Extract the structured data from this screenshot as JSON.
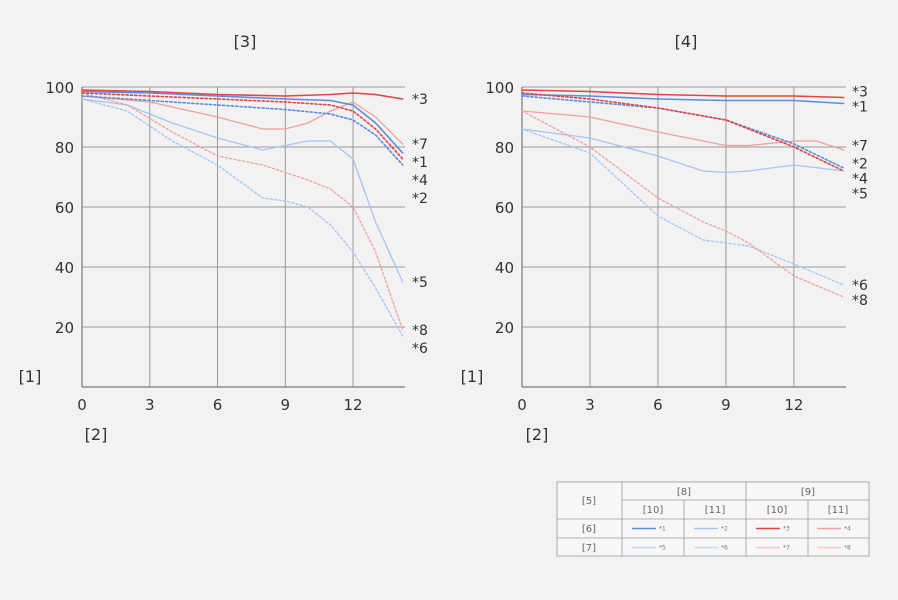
{
  "charts": {
    "left": {
      "title": "[3]",
      "ylabel": "[1]",
      "xlabel": "[2]"
    },
    "right": {
      "title": "[4]",
      "ylabel": "[1]",
      "xlabel": "[2]"
    }
  },
  "legend": {
    "corner": "[5]",
    "group_a": "[8]",
    "group_b": "[9]",
    "sub_a1": "[10]",
    "sub_a2": "[11]",
    "sub_b1": "[10]",
    "sub_b2": "[11]",
    "row1": "[6]",
    "row2": "[7]",
    "entries": [
      "*1",
      "*2",
      "*3",
      "*4",
      "*5",
      "*6",
      "*7",
      "*8"
    ]
  },
  "colors": {
    "blue": "#5b8de0",
    "light_blue": "#a6c4ee",
    "red": "#e24545",
    "light_red": "#f0a0a0"
  },
  "chart_data": [
    {
      "type": "line",
      "title": "[3]",
      "xlabel": "[2]",
      "ylabel": "[1]",
      "xlim": [
        0,
        14.3
      ],
      "ylim": [
        0,
        100
      ],
      "xticks": [
        0,
        3,
        6,
        9,
        12
      ],
      "yticks": [
        20,
        40,
        60,
        80,
        100
      ],
      "grid": true,
      "series": [
        {
          "name": "*1",
          "color": "#5b8de0",
          "dash": false,
          "width": 1.6,
          "x": [
            0,
            3,
            6,
            9,
            11,
            12,
            13,
            14.2
          ],
          "y": [
            98.5,
            98,
            97,
            96,
            95.5,
            94,
            88,
            78
          ]
        },
        {
          "name": "*2",
          "color": "#5b8de0",
          "dash": true,
          "width": 1.6,
          "x": [
            0,
            3,
            6,
            9,
            11,
            12,
            13,
            14.2
          ],
          "y": [
            97,
            95.5,
            94,
            92.5,
            91,
            89,
            84,
            74
          ]
        },
        {
          "name": "*3",
          "color": "#e24545",
          "dash": false,
          "width": 1.6,
          "x": [
            0,
            3,
            6,
            9,
            11,
            12,
            13,
            14.2
          ],
          "y": [
            99,
            98.5,
            97.5,
            97,
            97.5,
            98,
            97.5,
            96
          ]
        },
        {
          "name": "*4",
          "color": "#e24545",
          "dash": true,
          "width": 1.6,
          "x": [
            0,
            3,
            6,
            9,
            11,
            12,
            13,
            14.2
          ],
          "y": [
            98,
            97,
            96,
            95,
            94,
            92,
            86,
            76
          ]
        },
        {
          "name": "*5",
          "color": "#a6c4ee",
          "dash": false,
          "width": 1.3,
          "x": [
            0,
            2,
            4,
            6,
            8,
            10,
            11,
            12,
            13,
            14.2
          ],
          "y": [
            96,
            94,
            88,
            83,
            79,
            82,
            82,
            76,
            55,
            35
          ]
        },
        {
          "name": "*6",
          "color": "#a6c4ee",
          "dash": true,
          "width": 1.3,
          "x": [
            0,
            2,
            4,
            6,
            8,
            9,
            10,
            11,
            12,
            13,
            14.2
          ],
          "y": [
            96,
            92,
            82,
            74,
            63,
            62,
            60,
            54,
            45,
            33,
            17
          ]
        },
        {
          "name": "*7",
          "color": "#f0a0a0",
          "dash": false,
          "width": 1.3,
          "x": [
            0,
            3,
            6,
            8,
            9,
            10,
            11,
            12,
            13,
            14.2
          ],
          "y": [
            97,
            95,
            90,
            86,
            86,
            88,
            92,
            95,
            90,
            81
          ]
        },
        {
          "name": "*8",
          "color": "#f0a0a0",
          "dash": true,
          "width": 1.3,
          "x": [
            0,
            2,
            4,
            6,
            8,
            10,
            11,
            12,
            13,
            14.2
          ],
          "y": [
            98,
            94,
            85,
            77,
            74,
            69,
            66,
            60,
            45,
            19
          ]
        }
      ]
    },
    {
      "type": "line",
      "title": "[4]",
      "xlabel": "[2]",
      "ylabel": "[1]",
      "xlim": [
        0,
        14.3
      ],
      "ylim": [
        0,
        100
      ],
      "xticks": [
        0,
        3,
        6,
        9,
        12
      ],
      "yticks": [
        20,
        40,
        60,
        80,
        100
      ],
      "grid": true,
      "series": [
        {
          "name": "*1",
          "color": "#5b8de0",
          "dash": false,
          "width": 1.6,
          "x": [
            0,
            3,
            6,
            9,
            12,
            14.2
          ],
          "y": [
            97.5,
            97,
            96,
            95.5,
            95.5,
            94.5
          ]
        },
        {
          "name": "*2",
          "color": "#5b8de0",
          "dash": true,
          "width": 1.6,
          "x": [
            0,
            3,
            6,
            9,
            12,
            14.2
          ],
          "y": [
            97,
            95,
            93,
            89,
            81,
            73
          ]
        },
        {
          "name": "*3",
          "color": "#e24545",
          "dash": false,
          "width": 1.6,
          "x": [
            0,
            3,
            6,
            9,
            12,
            14.2
          ],
          "y": [
            99,
            98.5,
            97.5,
            97,
            97,
            96.5
          ]
        },
        {
          "name": "*4",
          "color": "#e24545",
          "dash": true,
          "width": 1.6,
          "x": [
            0,
            3,
            6,
            9,
            12,
            14.2
          ],
          "y": [
            98,
            96,
            93,
            89,
            80,
            72
          ]
        },
        {
          "name": "*5",
          "color": "#a6c4ee",
          "dash": false,
          "width": 1.3,
          "x": [
            0,
            3,
            6,
            8,
            9,
            10,
            12,
            14.2
          ],
          "y": [
            86,
            83,
            77,
            72,
            71.5,
            72,
            74,
            72
          ]
        },
        {
          "name": "*6",
          "color": "#a6c4ee",
          "dash": true,
          "width": 1.3,
          "x": [
            0,
            3,
            6,
            8,
            9,
            10,
            12,
            14.2
          ],
          "y": [
            86,
            78,
            57,
            49,
            48,
            47,
            41,
            34
          ]
        },
        {
          "name": "*7",
          "color": "#f0a0a0",
          "dash": false,
          "width": 1.3,
          "x": [
            0,
            3,
            6,
            9,
            10,
            12,
            13,
            14.2
          ],
          "y": [
            92,
            90,
            85,
            80.5,
            80.5,
            82,
            82,
            79
          ]
        },
        {
          "name": "*8",
          "color": "#f0a0a0",
          "dash": true,
          "width": 1.3,
          "x": [
            0,
            3,
            6,
            8,
            9,
            10,
            12,
            14.2
          ],
          "y": [
            92,
            80,
            63,
            55,
            52,
            48,
            37,
            30
          ]
        }
      ],
      "end_labels": [
        {
          "text": "*3",
          "y": 98.5
        },
        {
          "text": "*1",
          "y": 93.5
        },
        {
          "text": "*7",
          "y": 80.5
        },
        {
          "text": "*2",
          "y": 74.5
        },
        {
          "text": "*4",
          "y": 69.5
        },
        {
          "text": "*5",
          "y": 64.5
        },
        {
          "text": "*6",
          "y": 34
        },
        {
          "text": "*8",
          "y": 29
        }
      ]
    }
  ]
}
